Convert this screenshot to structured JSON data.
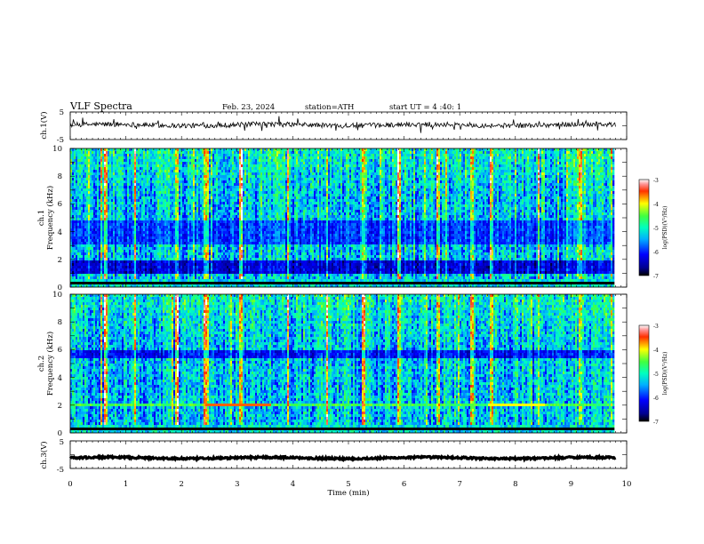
{
  "header": {
    "title": "VLF  Spectra",
    "date": "Feb. 23, 2024",
    "station": "station=ATH",
    "start_ut": "start  UT  =   4  :40: 1"
  },
  "chart_data": [
    {
      "id": "ch1-waveform",
      "type": "line",
      "ylabel": "ch.1(V)",
      "ylim": [
        -5,
        5
      ],
      "yticks": [
        "5",
        "-5"
      ],
      "xlim": [
        0,
        10
      ],
      "grid": false,
      "description_of_trace": "noisy broadband signal around ~0 V with sferic spikes",
      "trace": {
        "baseline": 0.3,
        "noise_amp": 0.9,
        "spike_amp": 3.0,
        "end_min": 9.8
      }
    },
    {
      "id": "ch1-spectrogram",
      "type": "heatmap",
      "ylabel": "ch.1\nFrequency (kHz)",
      "ylabel_lines": [
        "ch.1",
        "Frequency (kHz)"
      ],
      "ylim": [
        0,
        10
      ],
      "yticks": [
        "0",
        "2",
        "4",
        "6",
        "8",
        "10"
      ],
      "xlim": [
        0,
        10
      ],
      "data_end_min": 9.8,
      "colorbar": {
        "label": "log(PSD)(V²/Hz)",
        "range": [
          -7,
          -3
        ],
        "ticks": [
          "-3",
          "-4",
          "-5",
          "-6",
          "-7"
        ]
      },
      "bands": [
        {
          "f_lo": 0.9,
          "f_hi": 1.9,
          "level": -6.3
        },
        {
          "f_lo": 3.1,
          "f_hi": 4.8,
          "level": -5.9
        }
      ],
      "sferic_times": [
        0.55,
        0.62,
        1.15,
        1.9,
        2.4,
        2.45,
        3.05,
        3.9,
        4.6,
        5.25,
        5.9,
        6.6,
        7.2,
        7.55,
        8.4,
        9.15
      ]
    },
    {
      "id": "ch2-spectrogram",
      "type": "heatmap",
      "ylabel": "ch.2\nFrequency (kHz)",
      "ylabel_lines": [
        "ch.2",
        "Frequency (kHz)"
      ],
      "ylim": [
        0,
        10
      ],
      "yticks": [
        "0",
        "2",
        "4",
        "6",
        "8",
        "10"
      ],
      "xlim": [
        0,
        10
      ],
      "data_end_min": 9.8,
      "colorbar": {
        "label": "log(PSD)(V²/Hz)",
        "range": [
          -7,
          -3
        ],
        "ticks": [
          "-3",
          "-4",
          "-5",
          "-6",
          "-7"
        ]
      },
      "bands": [
        {
          "f_lo": 5.3,
          "f_hi": 6.0,
          "level": -6.1
        }
      ],
      "lines": [
        {
          "f": 2.0,
          "t_start": 2.4,
          "t_end": 3.6,
          "level": -3.6
        },
        {
          "f": 1.95,
          "t_start": 7.5,
          "t_end": 8.5,
          "level": -4.0
        }
      ],
      "sferic_times": [
        0.55,
        0.62,
        1.15,
        1.9,
        2.4,
        2.45,
        3.05,
        3.9,
        4.6,
        5.25,
        5.9,
        6.6,
        7.2,
        7.55,
        8.4,
        9.15
      ]
    },
    {
      "id": "ch3-waveform",
      "type": "line",
      "ylabel": "ch.3(V)",
      "ylim": [
        -5,
        5
      ],
      "yticks": [
        "5",
        "-5"
      ],
      "xlim": [
        0,
        10
      ],
      "grid": false,
      "xlabel": "Time  (min)",
      "xticks": [
        "0",
        "1",
        "2",
        "3",
        "4",
        "5",
        "6",
        "7",
        "8",
        "9",
        "10"
      ],
      "trace": {
        "baseline": -1.2,
        "noise_amp": 0.35,
        "end_min": 9.8
      }
    }
  ]
}
